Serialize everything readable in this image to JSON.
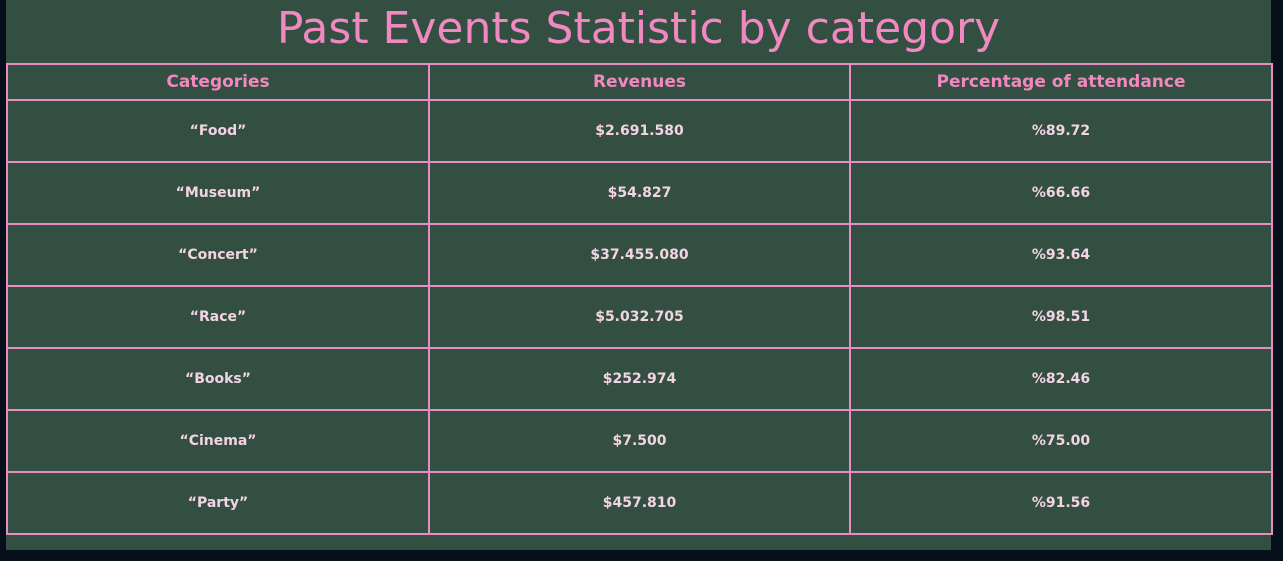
{
  "page": {
    "title": "Past Events Statistic by category"
  },
  "table": {
    "headers": [
      "Categories",
      "Revenues",
      "Percentage of attendance"
    ],
    "rows": [
      [
        "“Food”",
        "$2.691.580",
        "%89.72"
      ],
      [
        "“Museum”",
        "$54.827",
        "%66.66"
      ],
      [
        "“Concert”",
        "$37.455.080",
        "%93.64"
      ],
      [
        "“Race”",
        "$5.032.705",
        "%98.51"
      ],
      [
        "“Books”",
        "$252.974",
        "%82.46"
      ],
      [
        "“Cinema”",
        "$7.500",
        "%75.00"
      ],
      [
        "“Party”",
        "$457.810",
        "%91.56"
      ]
    ]
  },
  "colors": {
    "background": "#05101a",
    "panel": "#334f42",
    "accent": "#f188c0",
    "border": "#e88dc2",
    "cell_text": "#f4d3e4"
  }
}
